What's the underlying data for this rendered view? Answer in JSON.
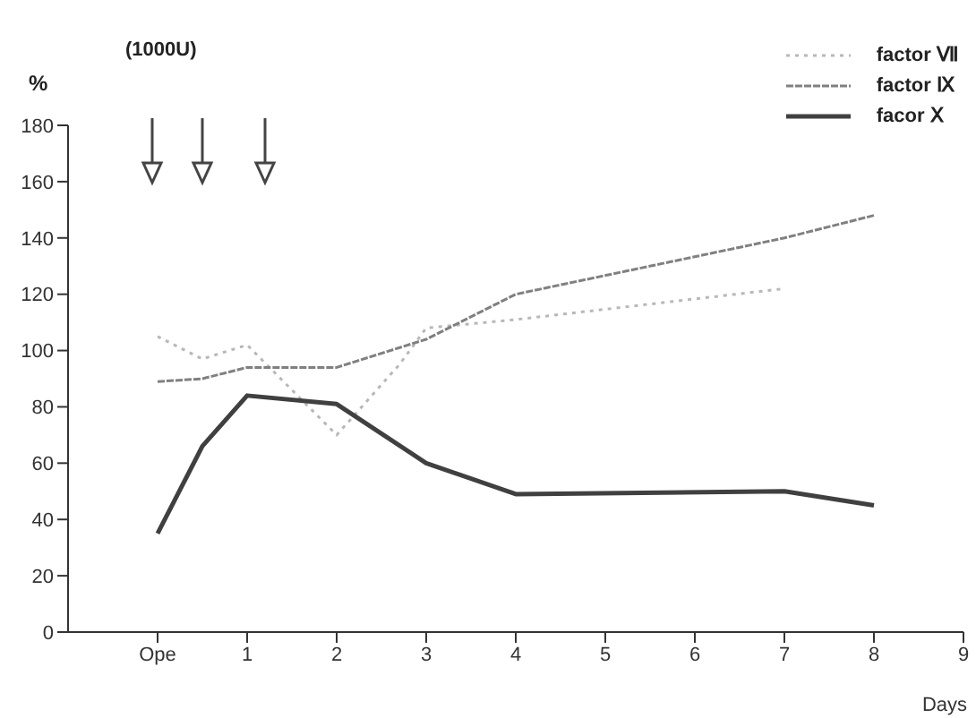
{
  "chart_data": {
    "type": "line",
    "ylabel": "%",
    "xlabel": "Days",
    "annotations": [
      "(1000U)"
    ],
    "xlim": [
      -1,
      9
    ],
    "xticks": [
      {
        "value": 0,
        "label": "Ope"
      },
      1,
      2,
      3,
      4,
      5,
      6,
      7,
      8,
      9
    ],
    "ylim": [
      0,
      180
    ],
    "yticks": [
      0,
      20,
      40,
      60,
      80,
      100,
      120,
      140,
      160,
      180
    ],
    "grid": false,
    "legend": "top right",
    "marker": "none",
    "series": [
      {
        "name": "factor Ⅶ",
        "color": "#b8b8b8",
        "line_style": "dotted",
        "x": [
          0,
          0.5,
          1,
          2,
          2.7,
          3,
          4,
          7
        ],
        "values": [
          105,
          97,
          102,
          70,
          95,
          108,
          111,
          122
        ]
      },
      {
        "name": "factor Ⅸ",
        "color": "#808080",
        "line_style": "dashed",
        "x": [
          0,
          0.5,
          1,
          2,
          3,
          4,
          7,
          8
        ],
        "values": [
          89,
          90,
          94,
          94,
          104,
          120,
          140,
          148
        ]
      },
      {
        "name": "facor Ⅹ",
        "color": "#404040",
        "line_style": "solid",
        "x": [
          0,
          0.5,
          1,
          2,
          3,
          4,
          7,
          8
        ],
        "values": [
          35,
          66,
          84,
          81,
          60,
          49,
          50,
          45
        ]
      }
    ]
  }
}
